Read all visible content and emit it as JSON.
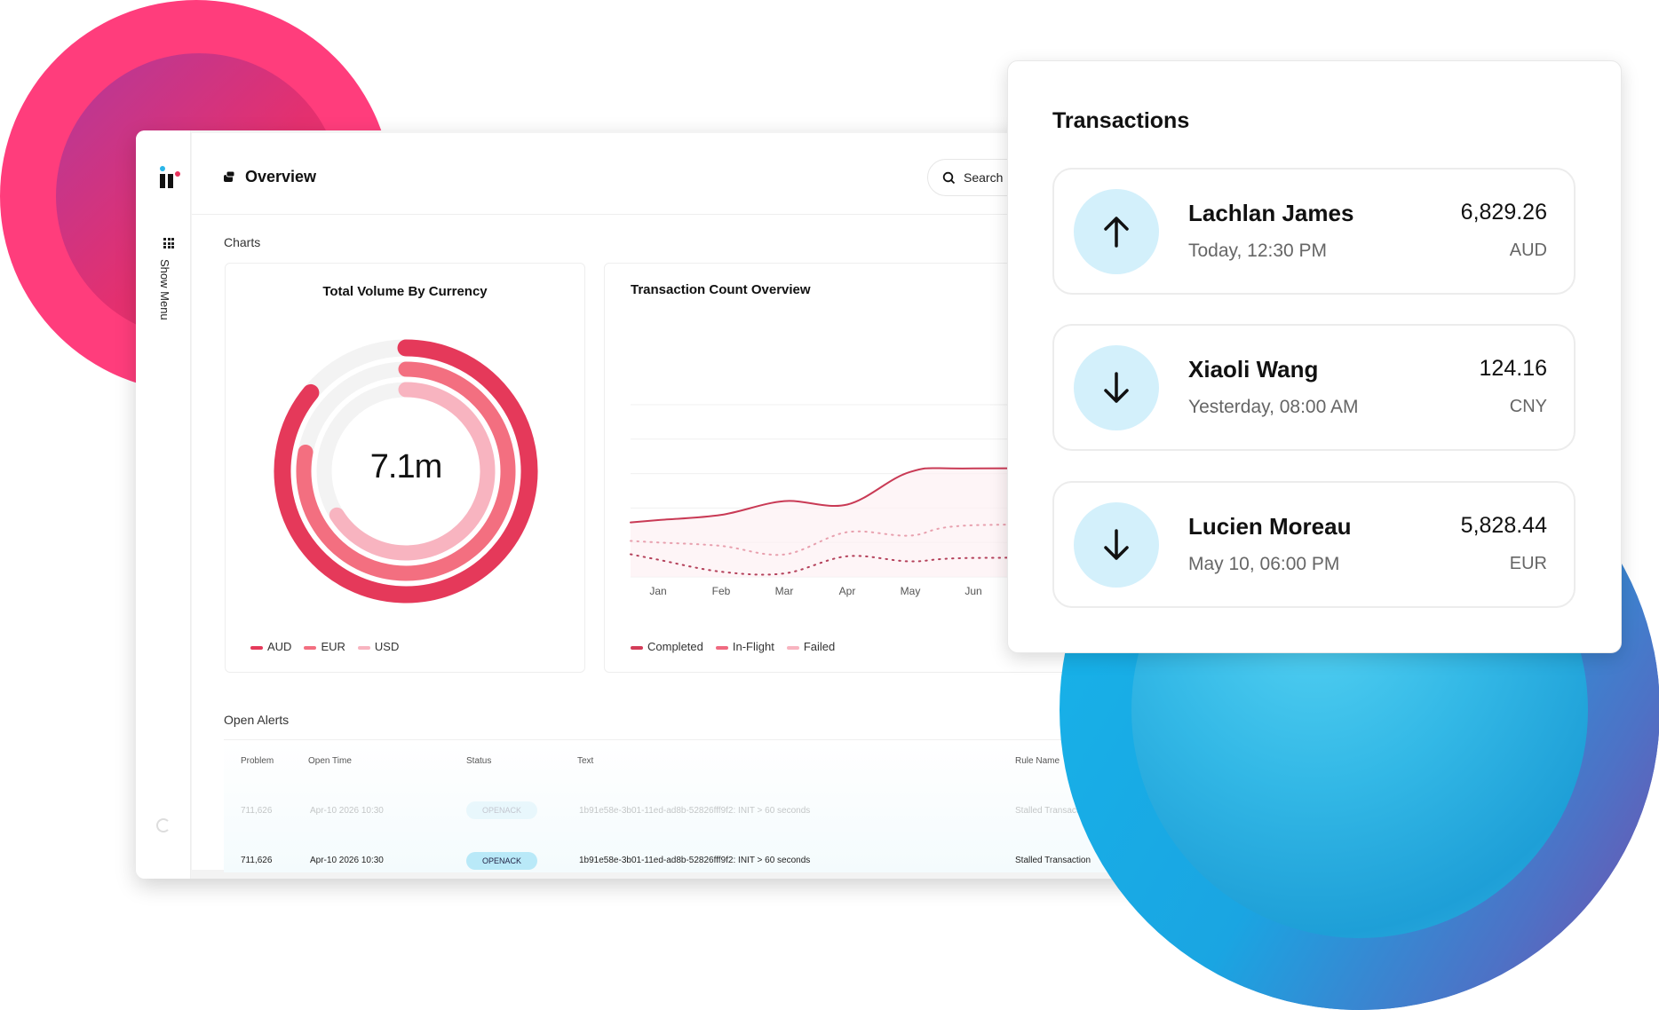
{
  "header": {
    "title": "Overview",
    "search_placeholder": "Search"
  },
  "sidebar": {
    "menu_label": "Show Menu"
  },
  "charts_section": {
    "label": "Charts"
  },
  "donut": {
    "title": "Total Volume By Currency",
    "center_label": "7.1m",
    "legend": [
      "AUD",
      "EUR",
      "USD"
    ]
  },
  "line": {
    "title": "Transaction Count Overview",
    "legend": [
      "Completed",
      "In-Flight",
      "Failed"
    ]
  },
  "chart_data": [
    {
      "type": "pie",
      "title": "Total Volume By Currency",
      "center_label": "7.1m",
      "categories": [
        "AUD",
        "EUR",
        "USD"
      ],
      "values": [
        0.86,
        0.78,
        0.66
      ],
      "colors": [
        "#e5395a",
        "#f36f80",
        "#f8b4c0"
      ],
      "legend": "bottom-left"
    },
    {
      "type": "line",
      "title": "Transaction Count Overview",
      "categories": [
        "Jan",
        "Feb",
        "Mar",
        "Apr",
        "May",
        "Jun"
      ],
      "series": [
        {
          "name": "Completed",
          "values": [
            33,
            36,
            44,
            42,
            61,
            63
          ],
          "color": "#c93a55",
          "style": "solid"
        },
        {
          "name": "In-Flight",
          "values": [
            20,
            18,
            13,
            26,
            24,
            30
          ],
          "color": "#e8a0ae",
          "style": "dotted"
        },
        {
          "name": "Failed",
          "values": [
            10,
            3,
            2,
            12,
            9,
            11
          ],
          "color": "#b4405a",
          "style": "dotted"
        }
      ],
      "ylim": [
        0,
        100
      ],
      "grid": true,
      "legend": "bottom-left"
    }
  ],
  "alerts": {
    "label": "Open Alerts",
    "columns": [
      "Problem",
      "Open Time",
      "Status",
      "Text",
      "Rule Name"
    ],
    "rows": [
      [
        "711,626",
        "Apr-10 2026 10:30",
        "OPENACK",
        "1b91e58e-3b01-11ed-ad8b-52826fff9f2: INIT > 60 seconds",
        "Stalled Transaction"
      ],
      [
        "711,626",
        "Apr-10 2026 10:30",
        "OPENACK",
        "1b91e58e-3b01-11ed-ad8b-52826fff9f2: INIT > 60 seconds",
        "Stalled Transaction"
      ]
    ]
  },
  "transactions": {
    "title": "Transactions",
    "items": [
      {
        "name": "Lachlan James",
        "time": "Today, 12:30 PM",
        "amount": "6,829.26",
        "currency": "AUD",
        "direction": "up-arrow-icon"
      },
      {
        "name": "Xiaoli Wang",
        "time": "Yesterday, 08:00 AM",
        "amount": "124.16",
        "currency": "CNY",
        "direction": "down-arrow-icon"
      },
      {
        "name": "Lucien Moreau",
        "time": "May 10, 06:00 PM",
        "amount": "5,828.44",
        "currency": "EUR",
        "direction": "down-arrow-icon"
      }
    ]
  }
}
